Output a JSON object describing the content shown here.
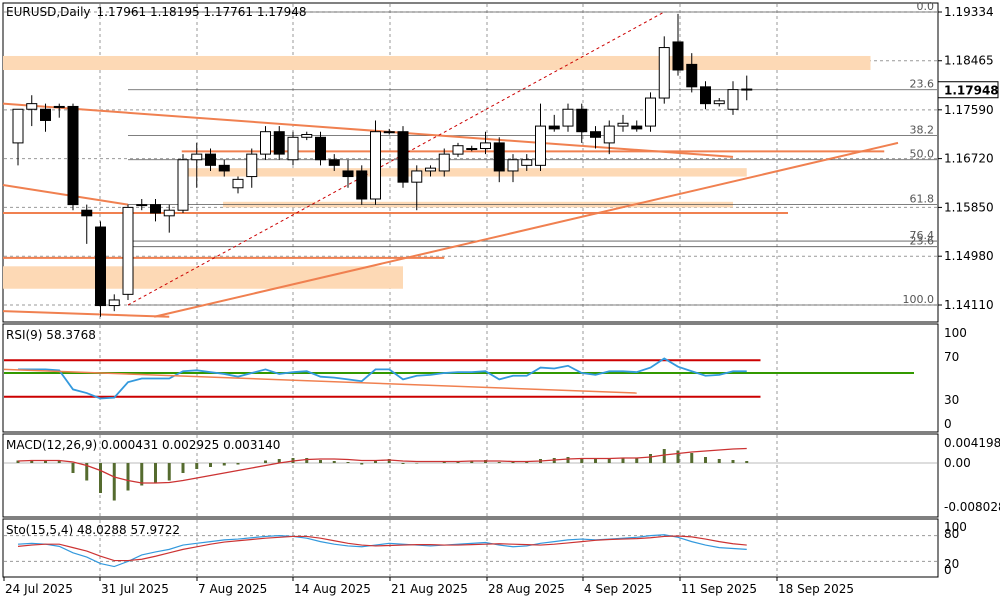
{
  "header": {
    "symbol": "EURUSD,Daily",
    "ohlc": "1.17961 1.18195 1.17761 1.17948"
  },
  "price_axis": {
    "ticks": [
      "1.19334",
      "1.18465",
      "1.17590",
      "1.16720",
      "1.15850",
      "1.14980",
      "1.14110"
    ],
    "current_price": "1.17948"
  },
  "fib_labels": [
    "0.0",
    "23.6",
    "38.2",
    "50.0",
    "61.8",
    "76.4",
    "23.6",
    "100.0"
  ],
  "rsi": {
    "title": "RSI(9) 58.3768",
    "levels": [
      "100",
      "70",
      "30",
      "0"
    ]
  },
  "macd": {
    "title": "MACD(12,26,9) 0.000431 0.002925 0.003140",
    "levels": [
      "0.004198",
      "0.00",
      "-0.008028"
    ]
  },
  "stoch": {
    "title": "Sto(15,5,4) 48.0288 57.9722",
    "levels": [
      "100",
      "80",
      "20",
      "0"
    ]
  },
  "date_labels": [
    "24 Jul 2025",
    "31 Jul 2025",
    "7 Aug 2025",
    "14 Aug 2025",
    "21 Aug 2025",
    "28 Aug 2025",
    "4 Sep 2025",
    "11 Sep 2025",
    "18 Sep 2025"
  ],
  "colors": {
    "bull": "#ffffff",
    "bear": "#000000",
    "zone": "#fdd9b5",
    "trend": "#f08050",
    "rsi_line": "#3399dd",
    "level_red": "#cc0000",
    "level_green": "#339900",
    "signal": "#cc3333",
    "hist": "#556b2f"
  },
  "chart_data": {
    "type": "candlestick",
    "ohlc": [
      [
        1.17,
        1.176,
        1.166,
        1.176
      ],
      [
        1.176,
        1.1785,
        1.173,
        1.177
      ],
      [
        1.176,
        1.177,
        1.172,
        1.174
      ],
      [
        1.1765,
        1.177,
        1.1745,
        1.1765
      ],
      [
        1.1765,
        1.177,
        1.158,
        1.159
      ],
      [
        1.158,
        1.159,
        1.152,
        1.157
      ],
      [
        1.155,
        1.156,
        1.139,
        1.141
      ],
      [
        1.141,
        1.143,
        1.14,
        1.142
      ],
      [
        1.143,
        1.159,
        1.142,
        1.1585
      ],
      [
        1.159,
        1.16,
        1.158,
        1.159
      ],
      [
        1.159,
        1.16,
        1.156,
        1.1575
      ],
      [
        1.157,
        1.159,
        1.154,
        1.158
      ],
      [
        1.158,
        1.168,
        1.1575,
        1.167
      ],
      [
        1.167,
        1.17,
        1.162,
        1.168
      ],
      [
        1.168,
        1.169,
        1.165,
        1.166
      ],
      [
        1.166,
        1.167,
        1.164,
        1.165
      ],
      [
        1.162,
        1.164,
        1.161,
        1.1635
      ],
      [
        1.164,
        1.169,
        1.162,
        1.168
      ],
      [
        1.168,
        1.173,
        1.167,
        1.172
      ],
      [
        1.172,
        1.173,
        1.167,
        1.168
      ],
      [
        1.167,
        1.172,
        1.166,
        1.171
      ],
      [
        1.171,
        1.172,
        1.1705,
        1.1715
      ],
      [
        1.171,
        1.172,
        1.166,
        1.167
      ],
      [
        1.167,
        1.168,
        1.165,
        1.166
      ],
      [
        1.165,
        1.167,
        1.162,
        1.164
      ],
      [
        1.165,
        1.166,
        1.159,
        1.16
      ],
      [
        1.16,
        1.174,
        1.159,
        1.172
      ],
      [
        1.172,
        1.1725,
        1.1715,
        1.172
      ],
      [
        1.172,
        1.173,
        1.162,
        1.163
      ],
      [
        1.163,
        1.166,
        1.158,
        1.165
      ],
      [
        1.165,
        1.166,
        1.164,
        1.1655
      ],
      [
        1.165,
        1.169,
        1.164,
        1.168
      ],
      [
        1.168,
        1.17,
        1.1675,
        1.1695
      ],
      [
        1.169,
        1.1695,
        1.1685,
        1.169
      ],
      [
        1.169,
        1.172,
        1.168,
        1.17
      ],
      [
        1.17,
        1.171,
        1.163,
        1.165
      ],
      [
        1.165,
        1.168,
        1.163,
        1.167
      ],
      [
        1.166,
        1.168,
        1.165,
        1.167
      ],
      [
        1.166,
        1.177,
        1.165,
        1.173
      ],
      [
        1.173,
        1.175,
        1.172,
        1.1725
      ],
      [
        1.173,
        1.177,
        1.172,
        1.176
      ],
      [
        1.176,
        1.177,
        1.17,
        1.172
      ],
      [
        1.172,
        1.173,
        1.169,
        1.171
      ],
      [
        1.17,
        1.174,
        1.168,
        1.173
      ],
      [
        1.173,
        1.175,
        1.172,
        1.1735
      ],
      [
        1.173,
        1.174,
        1.172,
        1.1725
      ],
      [
        1.173,
        1.179,
        1.172,
        1.178
      ],
      [
        1.178,
        1.189,
        1.177,
        1.187
      ],
      [
        1.188,
        1.193,
        1.182,
        1.183
      ],
      [
        1.184,
        1.186,
        1.179,
        1.18
      ],
      [
        1.18,
        1.181,
        1.176,
        1.177
      ],
      [
        1.177,
        1.178,
        1.1765,
        1.1775
      ],
      [
        1.176,
        1.181,
        1.175,
        1.1795
      ],
      [
        1.1796,
        1.182,
        1.1776,
        1.1795
      ]
    ],
    "rsi": [
      60,
      60,
      60,
      59,
      38,
      34,
      28,
      29,
      46,
      50,
      50,
      50,
      58,
      59,
      57,
      55,
      52,
      56,
      60,
      55,
      57,
      58,
      52,
      51,
      49,
      47,
      60,
      60,
      49,
      53,
      54,
      56,
      57,
      57,
      58,
      49,
      53,
      53,
      62,
      61,
      64,
      56,
      54,
      58,
      58,
      57,
      62,
      72,
      63,
      58,
      53,
      54,
      58,
      58
    ],
    "rsi_levels": [
      70,
      30
    ],
    "macd_hist": [
      0.0005,
      0.0006,
      0.0005,
      0.0004,
      -0.002,
      -0.0035,
      -0.006,
      -0.0075,
      -0.0055,
      -0.0045,
      -0.004,
      -0.0035,
      -0.002,
      -0.0012,
      -0.0008,
      -0.0005,
      -0.0003,
      0.0,
      0.0005,
      0.0008,
      0.001,
      0.001,
      0.0006,
      0.0004,
      0.0002,
      -0.0003,
      0.0006,
      0.0008,
      -0.0002,
      -0.0001,
      0.0,
      0.0002,
      0.0004,
      0.0005,
      0.0006,
      0.0002,
      0.0002,
      0.0002,
      0.0008,
      0.001,
      0.0012,
      0.001,
      0.0008,
      0.0009,
      0.001,
      0.001,
      0.0018,
      0.0028,
      0.0025,
      0.002,
      0.0012,
      0.0008,
      0.0006,
      0.0004
    ],
    "macd_signal": [
      0.0004,
      0.0005,
      0.0005,
      0.0005,
      0.0002,
      -0.0005,
      -0.0015,
      -0.0028,
      -0.0035,
      -0.004,
      -0.004,
      -0.0039,
      -0.0035,
      -0.003,
      -0.0025,
      -0.002,
      -0.0015,
      -0.001,
      -0.0005,
      0.0,
      0.0004,
      0.0007,
      0.0008,
      0.0008,
      0.0007,
      0.0005,
      0.0005,
      0.0006,
      0.0004,
      0.0003,
      0.0003,
      0.0003,
      0.0003,
      0.0004,
      0.0004,
      0.0004,
      0.0003,
      0.0003,
      0.0004,
      0.0006,
      0.0008,
      0.0009,
      0.0009,
      0.0009,
      0.001,
      0.001,
      0.0012,
      0.0016,
      0.0019,
      0.0022,
      0.0024,
      0.0026,
      0.0028,
      0.0029
    ],
    "stoch_main": [
      60,
      62,
      60,
      55,
      40,
      30,
      15,
      8,
      20,
      35,
      42,
      48,
      58,
      62,
      66,
      70,
      72,
      75,
      78,
      80,
      78,
      74,
      66,
      60,
      56,
      54,
      58,
      62,
      60,
      58,
      56,
      58,
      60,
      62,
      64,
      58,
      54,
      56,
      62,
      66,
      70,
      72,
      70,
      72,
      74,
      76,
      80,
      82,
      76,
      66,
      58,
      52,
      50,
      48
    ],
    "stoch_signal": [
      55,
      58,
      60,
      60,
      52,
      44,
      32,
      22,
      22,
      25,
      32,
      40,
      48,
      54,
      60,
      65,
      68,
      71,
      74,
      76,
      78,
      78,
      74,
      68,
      62,
      58,
      56,
      57,
      58,
      59,
      59,
      58,
      58,
      59,
      60,
      61,
      60,
      59,
      58,
      60,
      63,
      66,
      69,
      71,
      72,
      73,
      75,
      78,
      79,
      77,
      72,
      66,
      61,
      58
    ],
    "stoch_levels": [
      80,
      20
    ]
  }
}
